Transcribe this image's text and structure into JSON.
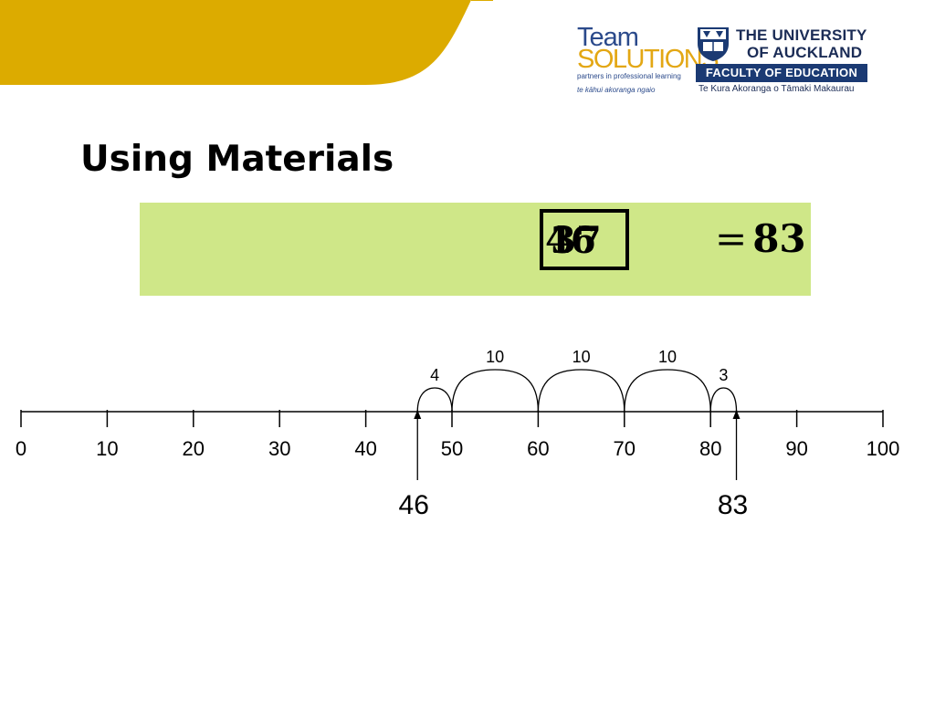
{
  "header": {
    "team_logo": {
      "word1": "Team",
      "word2": "SOLUTIONS",
      "tagline": "partners in professional learning",
      "maori": "te kāhui akoranga ngaio"
    },
    "university_logo": {
      "line1": "THE UNIVERSITY",
      "line2": "OF AUCKLAND",
      "faculty": "FACULTY OF EDUCATION",
      "maori": "Te Kura Akoranga o Tāmaki Makaurau"
    },
    "accent_color": "#dcab00"
  },
  "title": "Using Materials",
  "equation": {
    "overlap_first": "46",
    "overlap_second": "37",
    "equals": "=",
    "result": "83",
    "band_color": "#cfe788"
  },
  "number_line": {
    "min": 0,
    "max": 100,
    "tick_values": [
      0,
      10,
      20,
      30,
      40,
      50,
      60,
      70,
      80,
      90,
      100
    ],
    "tick_labels": [
      "0",
      "10",
      "20",
      "30",
      "40",
      "50",
      "60",
      "70",
      "80",
      "90",
      "100"
    ],
    "jumps": [
      {
        "from": 46,
        "to": 50,
        "label": "4"
      },
      {
        "from": 50,
        "to": 60,
        "label": "10"
      },
      {
        "from": 60,
        "to": 70,
        "label": "10"
      },
      {
        "from": 70,
        "to": 80,
        "label": "10"
      },
      {
        "from": 80,
        "to": 83,
        "label": "3"
      }
    ],
    "markers": [
      {
        "value": 46,
        "label": "46"
      },
      {
        "value": 83,
        "label": "83"
      }
    ]
  }
}
